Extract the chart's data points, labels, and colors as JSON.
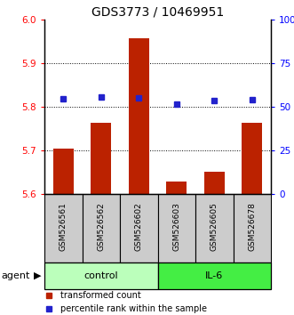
{
  "title": "GDS3773 / 10469951",
  "samples": [
    "GSM526561",
    "GSM526562",
    "GSM526602",
    "GSM526603",
    "GSM526605",
    "GSM526678"
  ],
  "bar_values": [
    5.705,
    5.763,
    5.958,
    5.628,
    5.652,
    5.763
  ],
  "percentile_values": [
    54.5,
    55.5,
    55.0,
    51.5,
    53.5,
    54.0
  ],
  "bar_color": "#bb2200",
  "dot_color": "#2222cc",
  "ylim_left": [
    5.6,
    6.0
  ],
  "ylim_right": [
    0,
    100
  ],
  "yticks_left": [
    5.6,
    5.7,
    5.8,
    5.9,
    6.0
  ],
  "yticks_right": [
    0,
    25,
    50,
    75,
    100
  ],
  "ytick_labels_right": [
    "0",
    "25",
    "50",
    "75",
    "100%"
  ],
  "grid_values": [
    5.7,
    5.8,
    5.9
  ],
  "groups": [
    {
      "label": "control",
      "indices": [
        0,
        1,
        2
      ],
      "color": "#bbffbb"
    },
    {
      "label": "IL-6",
      "indices": [
        3,
        4,
        5
      ],
      "color": "#44ee44"
    }
  ],
  "agent_label": "agent",
  "legend_items": [
    {
      "label": "transformed count",
      "color": "#bb2200"
    },
    {
      "label": "percentile rank within the sample",
      "color": "#2222cc"
    }
  ],
  "bar_bottom": 5.6,
  "sample_box_color": "#cccccc",
  "title_fontsize": 10,
  "tick_fontsize": 7.5,
  "label_fontsize": 8
}
